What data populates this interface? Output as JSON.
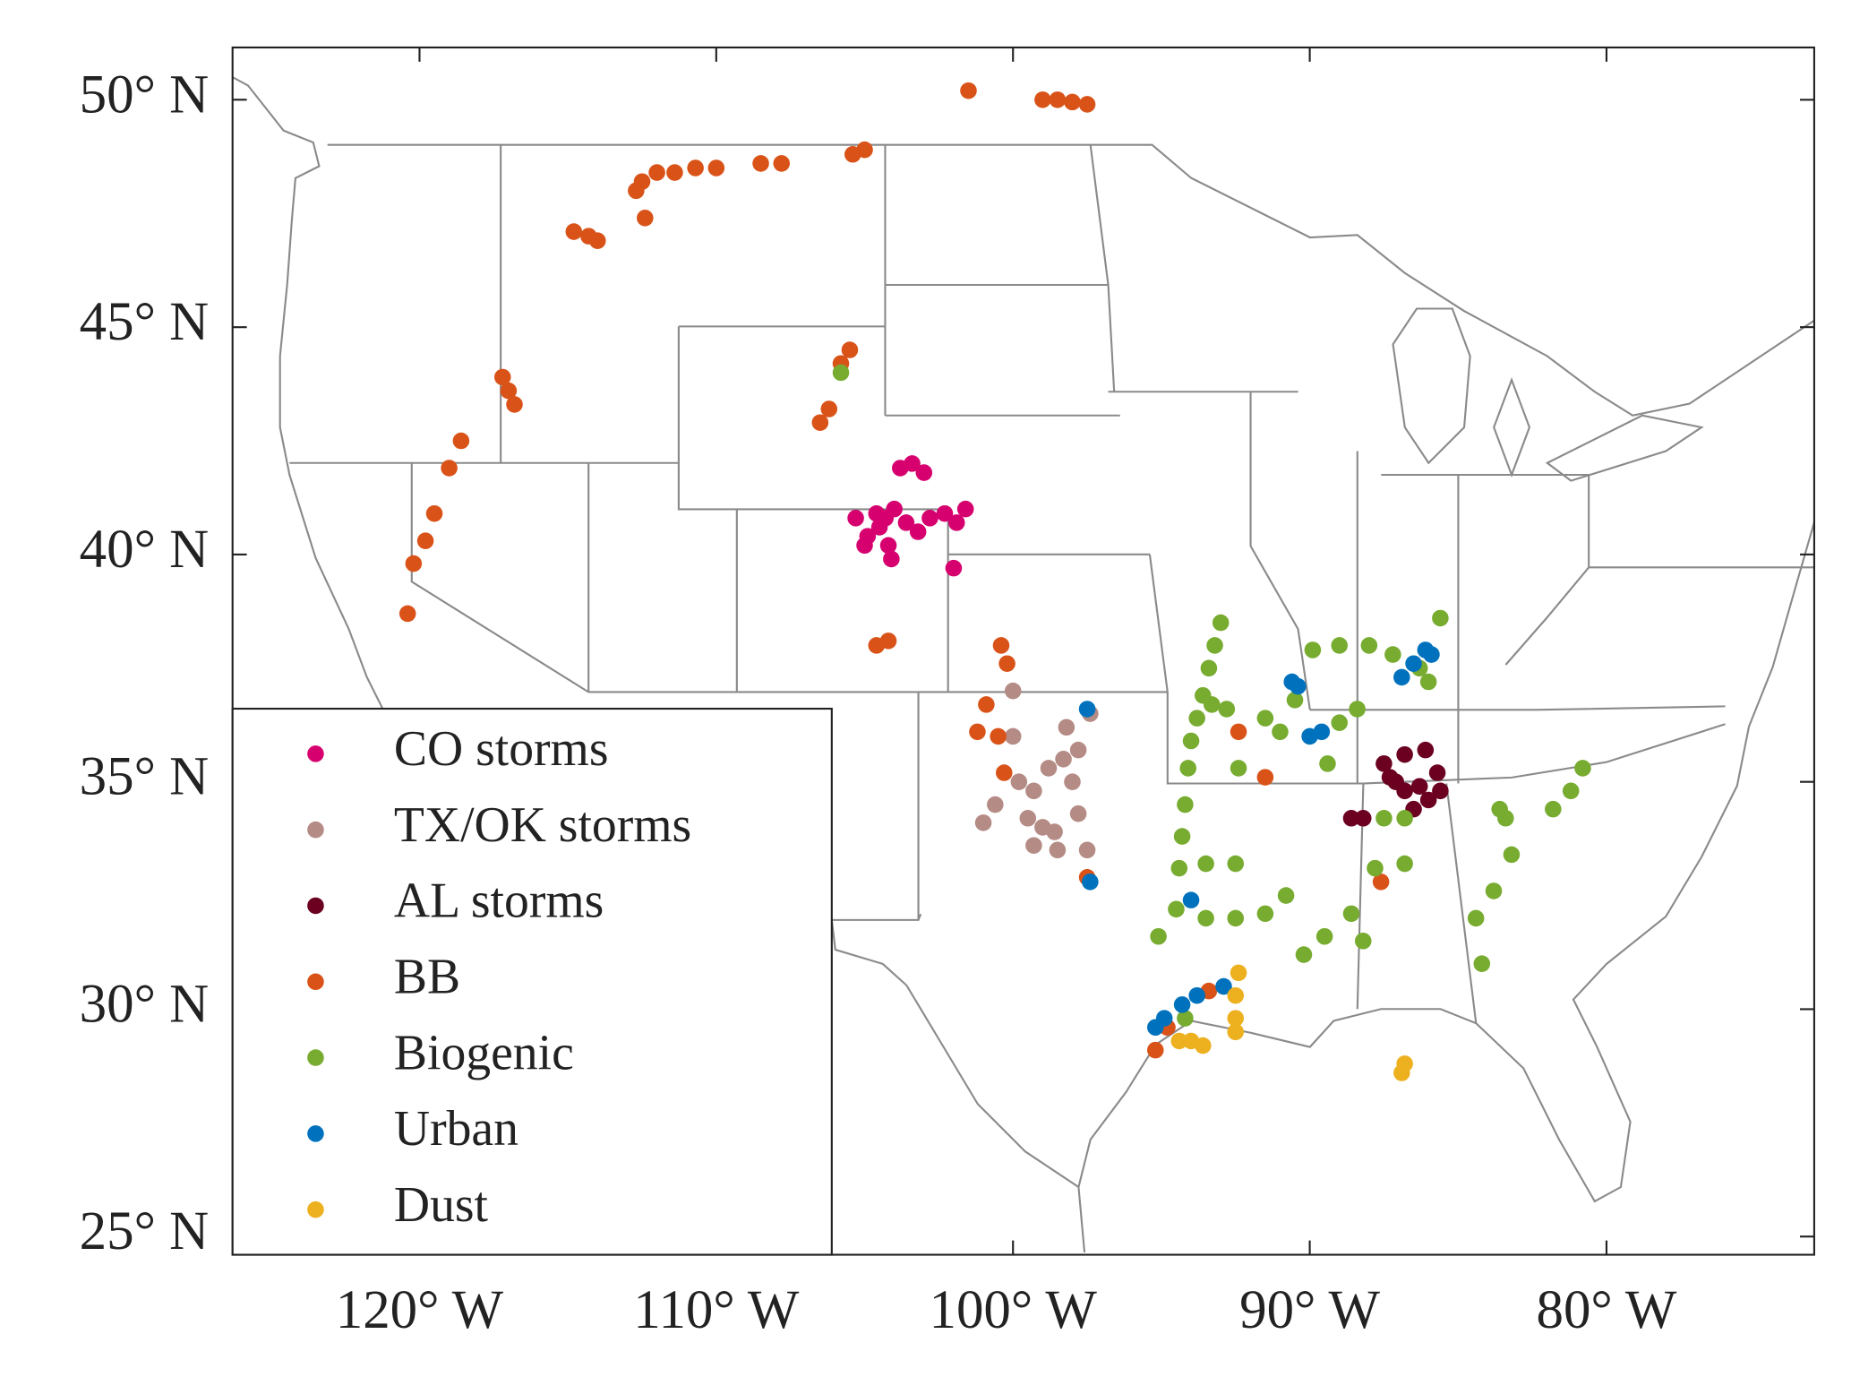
{
  "chart_data": {
    "type": "scatter",
    "xlim": [
      -126.3,
      -73
    ],
    "ylim": [
      24.6,
      51.15
    ],
    "xticks": [
      {
        "value": -120,
        "label": "120° W"
      },
      {
        "value": -110,
        "label": "110° W"
      },
      {
        "value": -100,
        "label": "100° W"
      },
      {
        "value": -90,
        "label": "90° W"
      },
      {
        "value": -80,
        "label": "80° W"
      }
    ],
    "yticks": [
      {
        "value": 25,
        "label": "25° N"
      },
      {
        "value": 30,
        "label": "30° N"
      },
      {
        "value": 35,
        "label": "35° N"
      },
      {
        "value": 40,
        "label": "40° N"
      },
      {
        "value": 45,
        "label": "45° N"
      },
      {
        "value": 50,
        "label": "50° N"
      }
    ],
    "legend": "lower left",
    "series": [
      {
        "name": "CO storms",
        "color": "#d6006e",
        "x": [
          -105.3,
          -104.9,
          -104.5,
          -104.2,
          -104.0,
          -103.8,
          -103.4,
          -103.2,
          -102.8,
          -102.3,
          -101.9,
          -101.6,
          -102.0,
          -104.1,
          -104.6,
          -103.6,
          -103.0,
          -105.0,
          -104.3
        ],
        "values": [
          40.8,
          40.4,
          40.6,
          40.2,
          41.0,
          41.9,
          42.0,
          40.5,
          40.8,
          40.9,
          40.7,
          41.0,
          39.7,
          39.9,
          40.9,
          40.7,
          41.8,
          40.2,
          40.8
        ]
      },
      {
        "name": "TX/OK storms",
        "color": "#b58b85",
        "x": [
          -100.0,
          -100.0,
          -99.8,
          -99.5,
          -99.3,
          -98.5,
          -97.5,
          -97.8,
          -98.0,
          -97.8,
          -97.4,
          -98.2,
          -98.8,
          -99.3,
          -101.0,
          -100.6,
          -98.6,
          -99.0,
          -98.3
        ],
        "values": [
          37.0,
          36.0,
          35.0,
          34.2,
          33.6,
          33.5,
          33.5,
          34.3,
          35.0,
          35.7,
          36.5,
          36.2,
          35.3,
          34.8,
          34.1,
          34.5,
          33.9,
          34.0,
          35.5
        ]
      },
      {
        "name": "AL storms",
        "color": "#6b0020",
        "x": [
          -87.5,
          -86.8,
          -86.1,
          -85.7,
          -85.6,
          -86.0,
          -86.5,
          -86.8,
          -87.1,
          -88.2,
          -88.6,
          -87.3,
          -86.3
        ],
        "values": [
          35.4,
          35.6,
          35.7,
          35.2,
          34.8,
          34.6,
          34.4,
          34.8,
          35.0,
          34.2,
          34.2,
          35.1,
          34.9
        ]
      },
      {
        "name": "BB",
        "color": "#d95319",
        "x": [
          -101.5,
          -99.0,
          -98.5,
          -98.0,
          -97.5,
          -105.0,
          -105.4,
          -107.8,
          -108.5,
          -110.0,
          -110.7,
          -111.4,
          -112.0,
          -112.5,
          -112.7,
          -112.4,
          -114.8,
          -114.3,
          -114.0,
          -105.5,
          -105.8,
          -106.2,
          -106.5,
          -117.2,
          -117.0,
          -116.8,
          -118.6,
          -119.0,
          -119.5,
          -119.8,
          -120.2,
          -120.4,
          -104.2,
          -104.6,
          -100.4,
          -100.2,
          -100.9,
          -101.2,
          -100.5,
          -100.3,
          -97.5,
          -92.4,
          -91.5,
          -95.2,
          -94.8,
          -93.4,
          -87.6
        ],
        "values": [
          50.2,
          50.0,
          50.0,
          49.95,
          49.9,
          48.9,
          48.8,
          48.6,
          48.6,
          48.5,
          48.5,
          48.4,
          48.4,
          48.2,
          48.0,
          47.4,
          47.1,
          47.0,
          46.9,
          44.5,
          44.2,
          43.2,
          42.9,
          43.9,
          43.6,
          43.3,
          42.5,
          41.9,
          40.9,
          40.3,
          39.8,
          38.7,
          38.1,
          38.0,
          38.0,
          37.6,
          36.7,
          36.1,
          36.0,
          35.2,
          32.9,
          36.1,
          35.1,
          29.1,
          29.6,
          30.4,
          32.8
        ]
      },
      {
        "name": "Biogenic",
        "color": "#77ac30",
        "x": [
          -93.0,
          -93.2,
          -93.4,
          -93.6,
          -93.8,
          -94.0,
          -94.1,
          -94.2,
          -94.3,
          -94.4,
          -93.5,
          -92.5,
          -94.5,
          -93.5,
          -92.5,
          -91.5,
          -90.8,
          -91.5,
          -91.0,
          -90.5,
          -89.9,
          -89.0,
          -88.0,
          -87.2,
          -85.6,
          -86.0,
          -86.3,
          -88.4,
          -89.0,
          -89.4,
          -90.2,
          -89.5,
          -88.6,
          -88.2,
          -87.8,
          -86.8,
          -86.8,
          -87.5,
          -83.6,
          -83.4,
          -83.2,
          -83.8,
          -84.4,
          -84.2,
          -81.8,
          -81.2,
          -80.8,
          -92.4,
          -95.1,
          -94.2,
          -105.8,
          -92.8,
          -93.3
        ],
        "values": [
          38.5,
          38.0,
          37.5,
          36.9,
          36.4,
          35.9,
          35.3,
          34.5,
          33.8,
          33.1,
          33.2,
          33.2,
          32.2,
          32.0,
          32.0,
          32.1,
          32.5,
          36.4,
          36.1,
          36.8,
          37.9,
          38.0,
          38.0,
          37.8,
          38.6,
          37.2,
          37.5,
          36.6,
          36.3,
          35.4,
          31.2,
          31.6,
          32.1,
          31.5,
          33.1,
          33.2,
          34.2,
          34.2,
          34.4,
          34.2,
          33.4,
          32.6,
          32.0,
          31.0,
          34.4,
          34.8,
          35.3,
          35.3,
          31.6,
          29.8,
          44.0,
          36.6,
          36.7
        ]
      },
      {
        "name": "Urban",
        "color": "#0072bd",
        "x": [
          -97.5,
          -97.4,
          -95.2,
          -94.9,
          -94.3,
          -93.8,
          -92.9,
          -94.0,
          -90.6,
          -90.4,
          -90.0,
          -89.6,
          -86.9,
          -86.5,
          -86.1,
          -85.9
        ],
        "values": [
          36.6,
          32.8,
          29.6,
          29.8,
          30.1,
          30.3,
          30.5,
          32.4,
          37.2,
          37.1,
          36.0,
          36.1,
          37.3,
          37.6,
          37.9,
          37.8
        ]
      },
      {
        "name": "Dust",
        "color": "#edb120",
        "x": [
          -94.4,
          -94.0,
          -93.6,
          -92.4,
          -92.5,
          -92.5,
          -92.5,
          -86.9,
          -86.8
        ],
        "values": [
          29.3,
          29.3,
          29.2,
          30.8,
          30.3,
          29.8,
          29.5,
          28.6,
          28.8
        ]
      }
    ]
  }
}
